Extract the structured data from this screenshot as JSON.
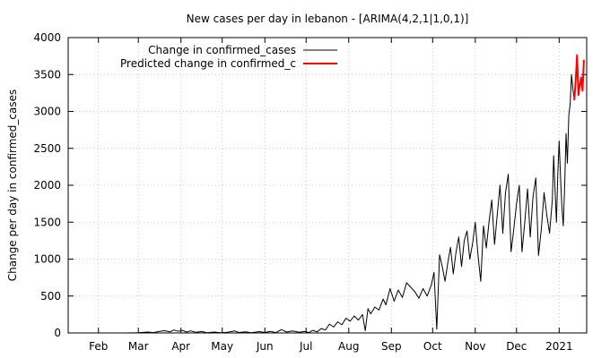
{
  "chart_data": {
    "type": "line",
    "title": "New cases per day in lebanon -  [ARIMA(4,2,1|1,0,1)]",
    "xlabel": "",
    "ylabel": "Change per day in confirmed_cases",
    "ylim": [
      0,
      4000
    ],
    "yticks": [
      0,
      500,
      1000,
      1500,
      2000,
      2500,
      3000,
      3500,
      4000
    ],
    "xlim": [
      "2020-01-10",
      "2021-01-21"
    ],
    "xticks": [
      {
        "label": "Feb",
        "date": "2020-02-01"
      },
      {
        "label": "Mar",
        "date": "2020-03-01"
      },
      {
        "label": "Apr",
        "date": "2020-04-01"
      },
      {
        "label": "May",
        "date": "2020-05-01"
      },
      {
        "label": "Jun",
        "date": "2020-06-01"
      },
      {
        "label": "Jul",
        "date": "2020-07-01"
      },
      {
        "label": "Aug",
        "date": "2020-08-01"
      },
      {
        "label": "Sep",
        "date": "2020-09-01"
      },
      {
        "label": "Oct",
        "date": "2020-10-01"
      },
      {
        "label": "Nov",
        "date": "2020-11-01"
      },
      {
        "label": "Dec",
        "date": "2020-12-01"
      },
      {
        "label": "2021",
        "date": "2021-01-01"
      }
    ],
    "grid": true,
    "legend_position": "top-left",
    "series": [
      {
        "name": "Change in confirmed_cases",
        "color": "#000000",
        "points": [
          [
            "2020-02-21",
            0
          ],
          [
            "2020-03-01",
            2
          ],
          [
            "2020-03-08",
            12
          ],
          [
            "2020-03-12",
            5
          ],
          [
            "2020-03-16",
            20
          ],
          [
            "2020-03-20",
            30
          ],
          [
            "2020-03-24",
            15
          ],
          [
            "2020-03-27",
            40
          ],
          [
            "2020-03-30",
            22
          ],
          [
            "2020-04-02",
            35
          ],
          [
            "2020-04-05",
            12
          ],
          [
            "2020-04-08",
            28
          ],
          [
            "2020-04-12",
            8
          ],
          [
            "2020-04-16",
            20
          ],
          [
            "2020-04-20",
            4
          ],
          [
            "2020-04-25",
            12
          ],
          [
            "2020-04-30",
            3
          ],
          [
            "2020-05-05",
            10
          ],
          [
            "2020-05-10",
            28
          ],
          [
            "2020-05-13",
            6
          ],
          [
            "2020-05-18",
            15
          ],
          [
            "2020-05-22",
            4
          ],
          [
            "2020-05-28",
            18
          ],
          [
            "2020-06-01",
            6
          ],
          [
            "2020-06-05",
            22
          ],
          [
            "2020-06-09",
            5
          ],
          [
            "2020-06-13",
            45
          ],
          [
            "2020-06-17",
            12
          ],
          [
            "2020-06-21",
            28
          ],
          [
            "2020-06-26",
            8
          ],
          [
            "2020-06-30",
            22
          ],
          [
            "2020-07-03",
            5
          ],
          [
            "2020-07-06",
            35
          ],
          [
            "2020-07-09",
            15
          ],
          [
            "2020-07-12",
            60
          ],
          [
            "2020-07-15",
            40
          ],
          [
            "2020-07-18",
            120
          ],
          [
            "2020-07-21",
            80
          ],
          [
            "2020-07-24",
            150
          ],
          [
            "2020-07-27",
            110
          ],
          [
            "2020-07-30",
            200
          ],
          [
            "2020-08-02",
            160
          ],
          [
            "2020-08-05",
            230
          ],
          [
            "2020-08-08",
            175
          ],
          [
            "2020-08-11",
            250
          ],
          [
            "2020-08-13",
            30
          ],
          [
            "2020-08-15",
            330
          ],
          [
            "2020-08-17",
            260
          ],
          [
            "2020-08-20",
            350
          ],
          [
            "2020-08-23",
            310
          ],
          [
            "2020-08-26",
            460
          ],
          [
            "2020-08-28",
            380
          ],
          [
            "2020-08-31",
            600
          ],
          [
            "2020-09-03",
            430
          ],
          [
            "2020-09-06",
            580
          ],
          [
            "2020-09-09",
            480
          ],
          [
            "2020-09-12",
            680
          ],
          [
            "2020-09-15",
            620
          ],
          [
            "2020-09-18",
            560
          ],
          [
            "2020-09-21",
            470
          ],
          [
            "2020-09-24",
            600
          ],
          [
            "2020-09-27",
            500
          ],
          [
            "2020-09-30",
            650
          ],
          [
            "2020-10-02",
            820
          ],
          [
            "2020-10-04",
            50
          ],
          [
            "2020-10-06",
            1060
          ],
          [
            "2020-10-08",
            900
          ],
          [
            "2020-10-10",
            700
          ],
          [
            "2020-10-12",
            950
          ],
          [
            "2020-10-14",
            1160
          ],
          [
            "2020-10-16",
            800
          ],
          [
            "2020-10-18",
            1100
          ],
          [
            "2020-10-20",
            1300
          ],
          [
            "2020-10-22",
            900
          ],
          [
            "2020-10-24",
            1250
          ],
          [
            "2020-10-26",
            1380
          ],
          [
            "2020-10-28",
            1000
          ],
          [
            "2020-10-30",
            1200
          ],
          [
            "2020-11-01",
            1500
          ],
          [
            "2020-11-03",
            1050
          ],
          [
            "2020-11-05",
            700
          ],
          [
            "2020-11-07",
            1450
          ],
          [
            "2020-11-09",
            1150
          ],
          [
            "2020-11-11",
            1500
          ],
          [
            "2020-11-13",
            1800
          ],
          [
            "2020-11-15",
            1200
          ],
          [
            "2020-11-17",
            1600
          ],
          [
            "2020-11-19",
            2000
          ],
          [
            "2020-11-21",
            1350
          ],
          [
            "2020-11-23",
            1900
          ],
          [
            "2020-11-25",
            2150
          ],
          [
            "2020-11-27",
            1100
          ],
          [
            "2020-11-29",
            1400
          ],
          [
            "2020-12-01",
            1750
          ],
          [
            "2020-12-03",
            2000
          ],
          [
            "2020-12-05",
            1100
          ],
          [
            "2020-12-07",
            1500
          ],
          [
            "2020-12-09",
            1950
          ],
          [
            "2020-12-11",
            1300
          ],
          [
            "2020-12-13",
            1850
          ],
          [
            "2020-12-15",
            2100
          ],
          [
            "2020-12-17",
            1050
          ],
          [
            "2020-12-19",
            1400
          ],
          [
            "2020-12-21",
            1900
          ],
          [
            "2020-12-23",
            1600
          ],
          [
            "2020-12-25",
            1350
          ],
          [
            "2020-12-27",
            1800
          ],
          [
            "2020-12-28",
            2400
          ],
          [
            "2020-12-29",
            1950
          ],
          [
            "2020-12-30",
            1500
          ],
          [
            "2020-12-31",
            2150
          ],
          [
            "2021-01-01",
            2600
          ],
          [
            "2021-01-02",
            2100
          ],
          [
            "2021-01-03",
            1700
          ],
          [
            "2021-01-04",
            1450
          ],
          [
            "2021-01-05",
            2000
          ],
          [
            "2021-01-06",
            2700
          ],
          [
            "2021-01-07",
            2300
          ],
          [
            "2021-01-08",
            2950
          ],
          [
            "2021-01-09",
            3100
          ],
          [
            "2021-01-10",
            3500
          ],
          [
            "2021-01-11",
            3300
          ],
          [
            "2021-01-12",
            3150
          ]
        ]
      },
      {
        "name": "Predicted change in confirmed_c",
        "color": "#ff0000",
        "points": [
          [
            "2021-01-12",
            3150
          ],
          [
            "2021-01-13",
            3400
          ],
          [
            "2021-01-14",
            3760
          ],
          [
            "2021-01-15",
            3220
          ],
          [
            "2021-01-16",
            3350
          ],
          [
            "2021-01-17",
            3460
          ],
          [
            "2021-01-18",
            3280
          ],
          [
            "2021-01-19",
            3700
          ]
        ]
      }
    ]
  }
}
